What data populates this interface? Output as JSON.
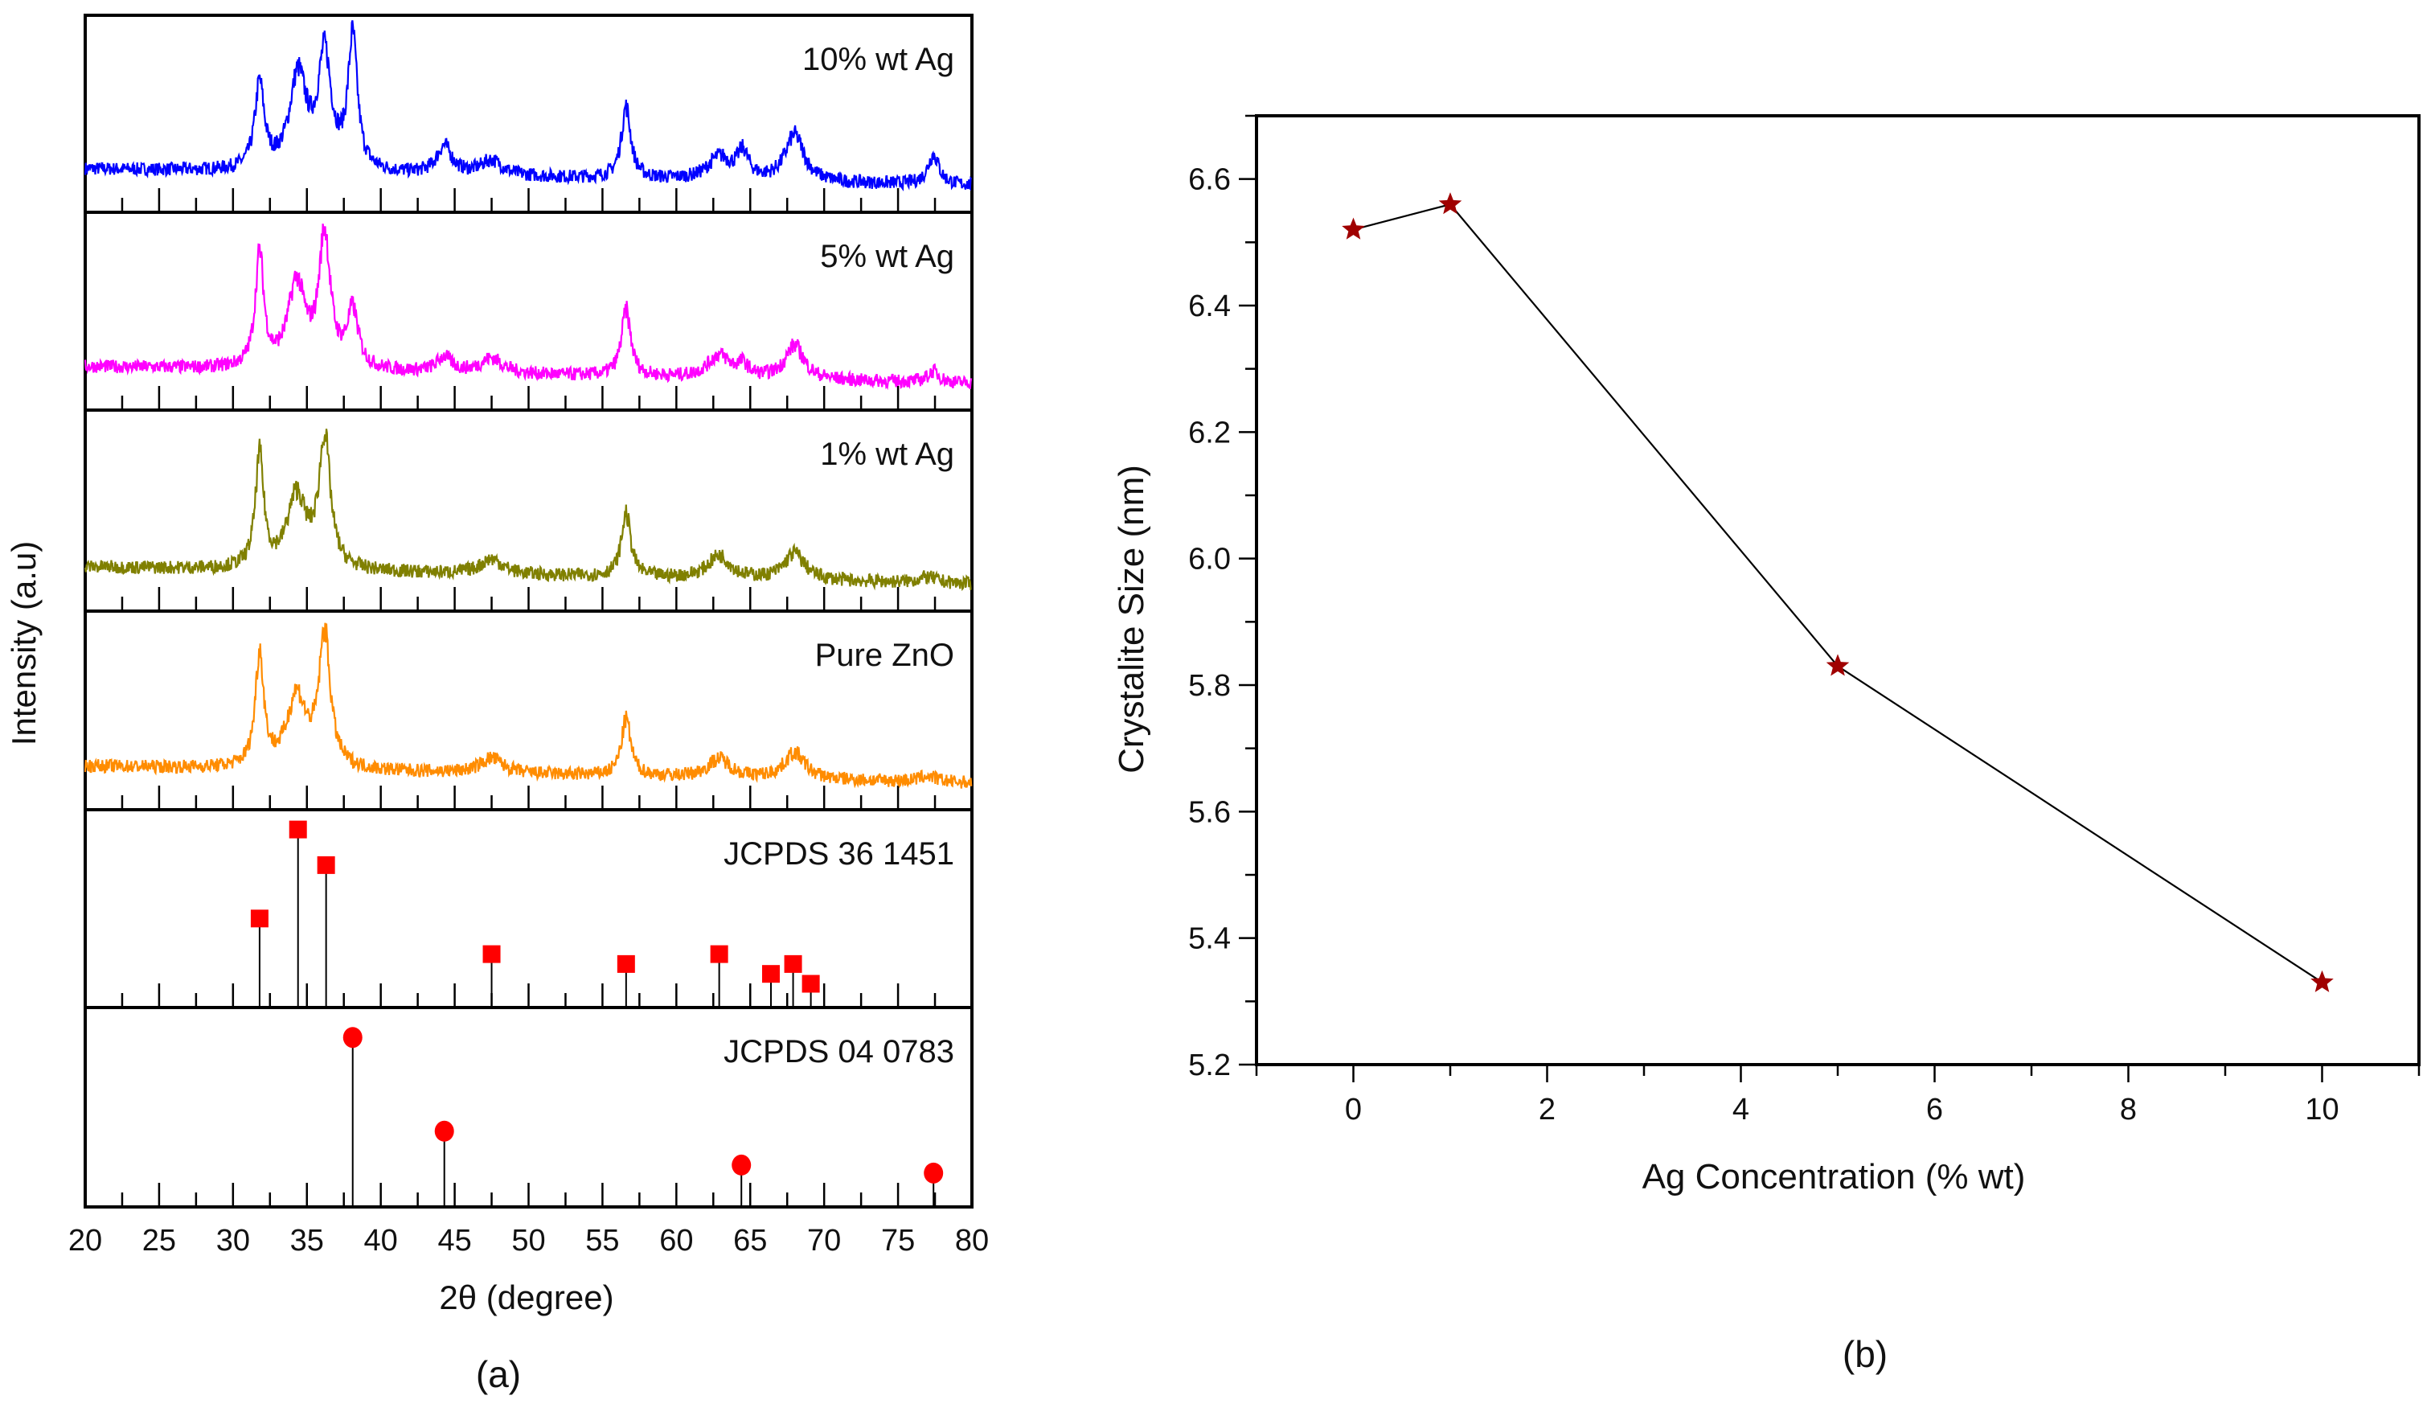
{
  "chart_data": [
    {
      "type": "line",
      "panel_label": "(a)",
      "xlabel": "2θ (degree)",
      "ylabel": "Intensity (a.u)",
      "xlim": [
        20,
        80
      ],
      "xticks": [
        "20",
        "25",
        "30",
        "35",
        "40",
        "45",
        "50",
        "55",
        "60",
        "65",
        "70",
        "75",
        "80"
      ],
      "series": [
        {
          "name": "10% wt Ag",
          "color": "#0000ff",
          "peaks": [
            [
              31.8,
              0.45,
              0.5
            ],
            [
              34.4,
              0.5,
              0.9
            ],
            [
              36.2,
              0.6,
              0.7
            ],
            [
              38.1,
              0.7,
              0.5
            ],
            [
              44.3,
              0.15,
              0.8
            ],
            [
              47.5,
              0.08,
              1.2
            ],
            [
              56.6,
              0.38,
              0.5
            ],
            [
              62.9,
              0.12,
              1.2
            ],
            [
              64.5,
              0.14,
              0.6
            ],
            [
              68,
              0.25,
              1
            ],
            [
              77.4,
              0.16,
              0.6
            ]
          ]
        },
        {
          "name": "5% wt Ag",
          "color": "#ff00ff",
          "peaks": [
            [
              31.8,
              0.6,
              0.45
            ],
            [
              34.3,
              0.45,
              0.9
            ],
            [
              36.2,
              0.7,
              0.6
            ],
            [
              38.1,
              0.3,
              0.6
            ],
            [
              44.3,
              0.08,
              0.8
            ],
            [
              47.5,
              0.08,
              1.2
            ],
            [
              56.6,
              0.35,
              0.5
            ],
            [
              62.9,
              0.12,
              1.2
            ],
            [
              64.5,
              0.06,
              0.6
            ],
            [
              68,
              0.18,
              1
            ],
            [
              77.4,
              0.06,
              0.6
            ]
          ]
        },
        {
          "name": "1% wt Ag",
          "color": "#808000",
          "peaks": [
            [
              31.8,
              0.58,
              0.45
            ],
            [
              34.3,
              0.38,
              1.0
            ],
            [
              36.2,
              0.68,
              0.6
            ],
            [
              47.5,
              0.08,
              1.2
            ],
            [
              56.6,
              0.33,
              0.5
            ],
            [
              62.9,
              0.12,
              1.2
            ],
            [
              68,
              0.14,
              1.1
            ],
            [
              77,
              0.03,
              1
            ]
          ]
        },
        {
          "name": "Pure ZnO",
          "color": "#ff8c00",
          "peaks": [
            [
              31.8,
              0.6,
              0.45
            ],
            [
              34.3,
              0.38,
              1.0
            ],
            [
              36.2,
              0.7,
              0.6
            ],
            [
              47.5,
              0.08,
              1.2
            ],
            [
              56.6,
              0.3,
              0.5
            ],
            [
              62.9,
              0.1,
              1.2
            ],
            [
              68,
              0.14,
              1.1
            ],
            [
              77,
              0.03,
              1
            ]
          ]
        }
      ],
      "references": [
        {
          "name": "JCPDS 36 1451",
          "marker": "square",
          "color": "#ff0000",
          "lines": [
            [
              31.8,
              0.45
            ],
            [
              34.4,
              0.9
            ],
            [
              36.3,
              0.72
            ],
            [
              47.5,
              0.27
            ],
            [
              56.6,
              0.22
            ],
            [
              62.9,
              0.27
            ],
            [
              66.4,
              0.17
            ],
            [
              67.9,
              0.22
            ],
            [
              69.1,
              0.12
            ]
          ]
        },
        {
          "name": "JCPDS 04 0783",
          "marker": "circle",
          "color": "#ff0000",
          "lines": [
            [
              38.1,
              0.85
            ],
            [
              44.3,
              0.38
            ],
            [
              64.4,
              0.21
            ],
            [
              77.4,
              0.17
            ]
          ]
        }
      ]
    },
    {
      "type": "line",
      "panel_label": "(b)",
      "xlabel": "Ag Concentration (% wt)",
      "ylabel": "Crystalite Size (nm)",
      "xlim": [
        -1,
        11
      ],
      "ylim": [
        5.2,
        6.7
      ],
      "xticks": [
        "0",
        "2",
        "4",
        "6",
        "8",
        "10"
      ],
      "yticks": [
        "5.2",
        "5.4",
        "5.6",
        "5.8",
        "6.0",
        "6.2",
        "6.4",
        "6.6"
      ],
      "marker": "star",
      "marker_color": "#a00000",
      "x": [
        0,
        1,
        5,
        10
      ],
      "y": [
        6.52,
        6.56,
        5.83,
        5.33
      ]
    }
  ]
}
